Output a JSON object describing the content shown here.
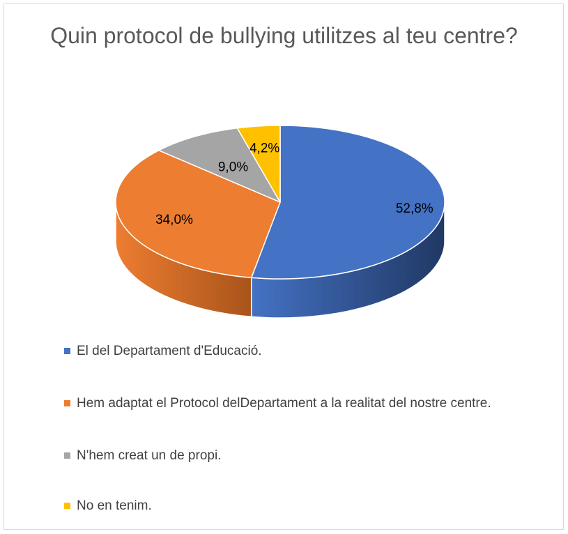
{
  "chart_data": {
    "type": "pie",
    "title": "Quin protocol de bullying utilitzes al teu centre?",
    "categories": [
      "El del Departament d'Educació.",
      "Hem adaptat el Protocol delDepartament a la realitat del nostre centre.",
      "N'hem creat un de propi.",
      "No en tenim."
    ],
    "values": [
      52.8,
      34.0,
      9.0,
      4.2
    ],
    "data_labels": [
      "52,8%",
      "34,0%",
      "9,0%",
      "4,2%"
    ],
    "colors": [
      "#4472C4",
      "#ED7D31",
      "#A5A5A5",
      "#FFC000"
    ],
    "side_colors": [
      "#203864",
      "#A9541B",
      "#7A7A7A",
      "#B38600"
    ],
    "legend_position": "bottom",
    "style": "3d-pie"
  }
}
